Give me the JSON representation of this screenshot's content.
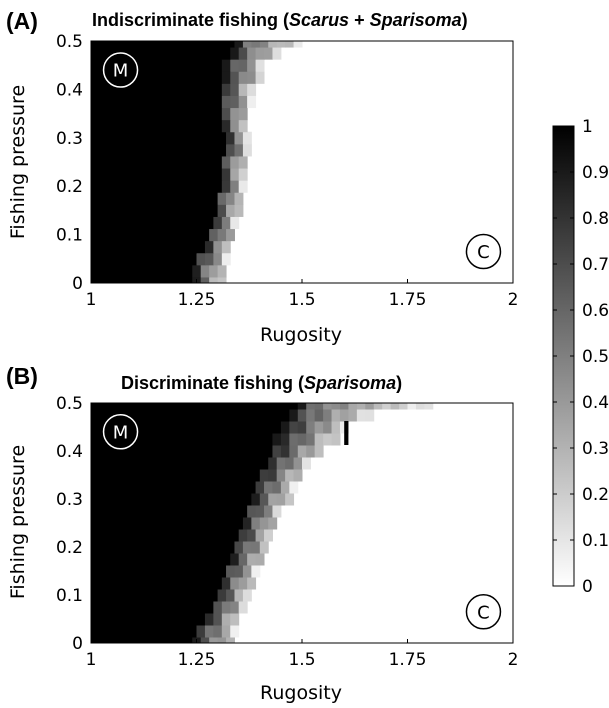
{
  "colorbar": {
    "ticks": [
      "0",
      "0.1",
      "0.2",
      "0.3",
      "0.4",
      "0.5",
      "0.6",
      "0.7",
      "0.8",
      "0.9",
      "1"
    ],
    "range": [
      0,
      1
    ],
    "colormap": "gray-reversed"
  },
  "chart_data": [
    {
      "type": "heatmap",
      "panel_label": "(A)",
      "title_parts": [
        "Indiscriminate fishing (",
        "Scarus",
        " + ",
        "Sparisoma",
        ")"
      ],
      "xlabel": "Rugosity",
      "ylabel": "Fishing pressure",
      "xlim": [
        1,
        2
      ],
      "ylim": [
        0,
        0.5
      ],
      "xticks": [
        "1",
        "1.25",
        "1.5",
        "1.75",
        "2"
      ],
      "yticks": [
        "0",
        "0.1",
        "0.2",
        "0.3",
        "0.4",
        "0.5"
      ],
      "markers": [
        {
          "label": "M",
          "x": 1.07,
          "y": 0.44
        },
        {
          "label": "C",
          "x": 1.93,
          "y": 0.065
        }
      ],
      "grid": {
        "x_step": 0.02,
        "y_step": 0.025,
        "profile": [
          [
            0.0,
            1.22,
            1.31,
            0.6
          ],
          [
            0.025,
            1.22,
            1.31,
            0.6
          ],
          [
            0.05,
            1.23,
            1.32,
            0.6
          ],
          [
            0.075,
            1.25,
            1.33,
            0.55
          ],
          [
            0.1,
            1.26,
            1.34,
            0.55
          ],
          [
            0.125,
            1.27,
            1.34,
            0.55
          ],
          [
            0.15,
            1.28,
            1.35,
            0.55
          ],
          [
            0.175,
            1.28,
            1.35,
            0.55
          ],
          [
            0.2,
            1.29,
            1.36,
            0.55
          ],
          [
            0.225,
            1.29,
            1.36,
            0.55
          ],
          [
            0.25,
            1.29,
            1.36,
            0.55
          ],
          [
            0.275,
            1.3,
            1.37,
            0.55
          ],
          [
            0.3,
            1.3,
            1.37,
            0.55
          ],
          [
            0.325,
            1.29,
            1.37,
            0.55
          ],
          [
            0.35,
            1.29,
            1.37,
            0.55
          ],
          [
            0.375,
            1.29,
            1.38,
            0.55
          ],
          [
            0.4,
            1.29,
            1.38,
            0.55
          ],
          [
            0.425,
            1.31,
            1.4,
            0.5
          ],
          [
            0.45,
            1.31,
            1.41,
            0.45
          ],
          [
            0.475,
            1.33,
            1.45,
            0.35
          ],
          [
            0.5,
            1.34,
            1.5,
            0.25
          ]
        ]
      }
    },
    {
      "type": "heatmap",
      "panel_label": "(B)",
      "title_parts": [
        "Discriminate fishing (",
        "",
        "",
        "Sparisoma",
        ")"
      ],
      "xlabel": "Rugosity",
      "ylabel": "Fishing pressure",
      "xlim": [
        1,
        2
      ],
      "ylim": [
        0,
        0.5
      ],
      "xticks": [
        "1",
        "1.25",
        "1.5",
        "1.75",
        "2"
      ],
      "yticks": [
        "0",
        "0.1",
        "0.2",
        "0.3",
        "0.4",
        "0.5"
      ],
      "markers": [
        {
          "label": "M",
          "x": 1.07,
          "y": 0.44
        },
        {
          "label": "C",
          "x": 1.93,
          "y": 0.065
        }
      ],
      "grid": {
        "x_step": 0.02,
        "y_step": 0.025,
        "profile": [
          [
            0.0,
            1.22,
            1.34,
            0.55
          ],
          [
            0.025,
            1.23,
            1.34,
            0.55
          ],
          [
            0.05,
            1.25,
            1.35,
            0.55
          ],
          [
            0.075,
            1.27,
            1.36,
            0.55
          ],
          [
            0.1,
            1.28,
            1.37,
            0.55
          ],
          [
            0.125,
            1.29,
            1.38,
            0.55
          ],
          [
            0.15,
            1.3,
            1.39,
            0.55
          ],
          [
            0.175,
            1.31,
            1.41,
            0.55
          ],
          [
            0.2,
            1.32,
            1.42,
            0.55
          ],
          [
            0.225,
            1.33,
            1.43,
            0.55
          ],
          [
            0.25,
            1.34,
            1.44,
            0.55
          ],
          [
            0.275,
            1.35,
            1.45,
            0.55
          ],
          [
            0.3,
            1.36,
            1.47,
            0.55
          ],
          [
            0.325,
            1.37,
            1.48,
            0.55
          ],
          [
            0.35,
            1.38,
            1.5,
            0.55
          ],
          [
            0.375,
            1.4,
            1.52,
            0.55
          ],
          [
            0.4,
            1.41,
            1.55,
            0.55
          ],
          [
            0.425,
            1.43,
            1.58,
            0.5
          ],
          [
            0.45,
            1.45,
            1.61,
            0.45
          ],
          [
            0.475,
            1.47,
            1.67,
            0.35
          ],
          [
            0.5,
            1.49,
            1.8,
            0.2
          ]
        ],
        "special_cells": [
          {
            "x": 1.6,
            "y": 0.425,
            "value": 1.0
          },
          {
            "x": 1.6,
            "y": 0.45,
            "value": 1.0
          }
        ]
      }
    }
  ]
}
